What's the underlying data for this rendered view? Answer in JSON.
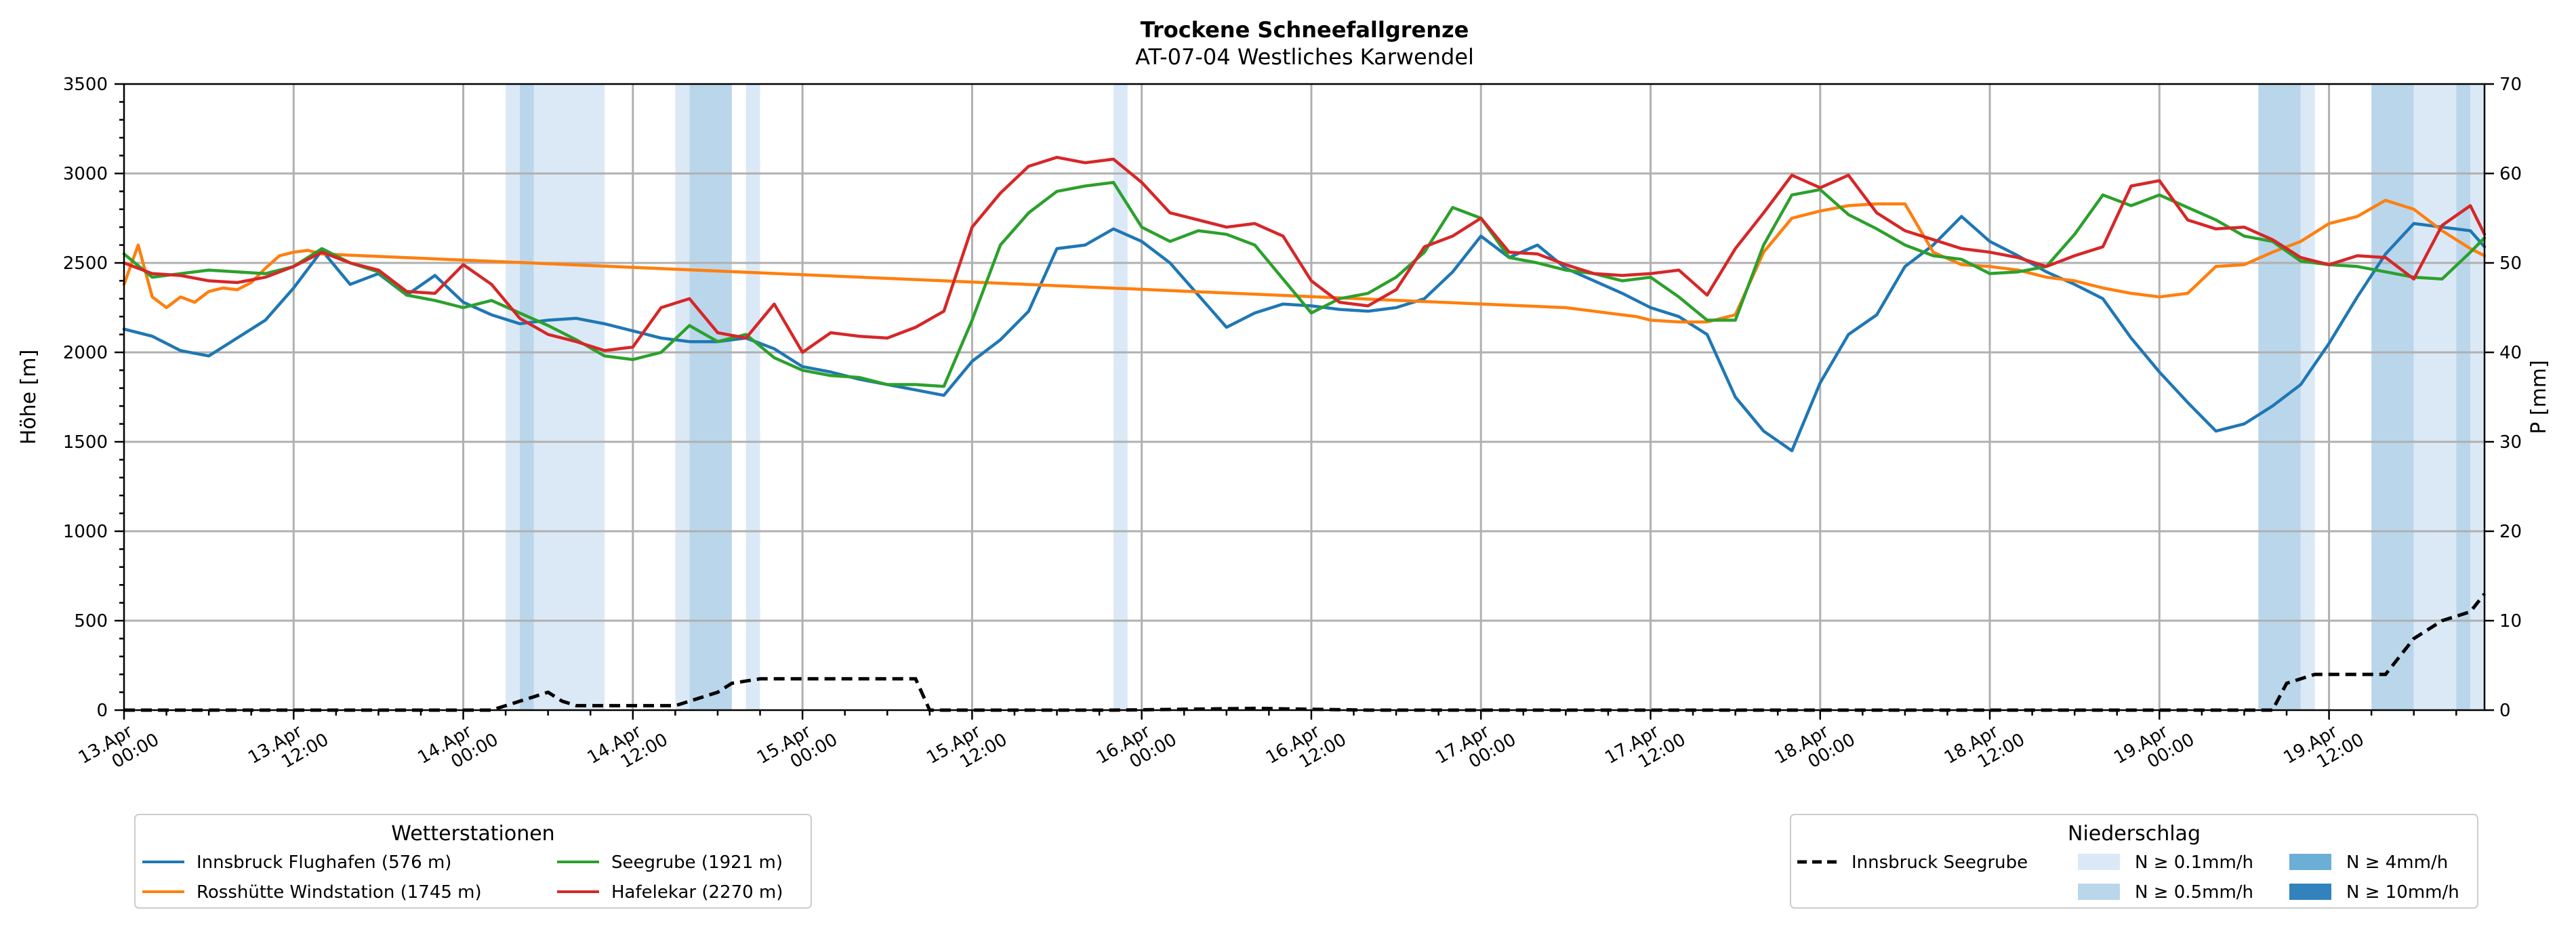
{
  "chart_data": {
    "type": "line",
    "title": "Trockene Schneefallgrenze",
    "subtitle": "AT-07-04 Westliches Karwendel",
    "ylabel": "Höhe [m]",
    "y2label": "P [mm]",
    "ylim": [
      0,
      3500
    ],
    "y2lim": [
      0,
      70
    ],
    "yticks": [
      "0",
      "500",
      "1000",
      "1500",
      "2000",
      "2500",
      "3000",
      "3500"
    ],
    "y2ticks": [
      "0",
      "10",
      "20",
      "30",
      "40",
      "50",
      "60",
      "70"
    ],
    "x_unit": "hours since 13.Apr 00:00",
    "xlim": [
      0,
      167
    ],
    "xticks": [
      {
        "line1": "13.Apr",
        "line2": "00:00"
      },
      {
        "line1": "13.Apr",
        "line2": "12:00"
      },
      {
        "line1": "14.Apr",
        "line2": "00:00"
      },
      {
        "line1": "14.Apr",
        "line2": "12:00"
      },
      {
        "line1": "15.Apr",
        "line2": "00:00"
      },
      {
        "line1": "15.Apr",
        "line2": "12:00"
      },
      {
        "line1": "16.Apr",
        "line2": "00:00"
      },
      {
        "line1": "16.Apr",
        "line2": "12:00"
      },
      {
        "line1": "17.Apr",
        "line2": "00:00"
      },
      {
        "line1": "17.Apr",
        "line2": "12:00"
      },
      {
        "line1": "18.Apr",
        "line2": "00:00"
      },
      {
        "line1": "18.Apr",
        "line2": "12:00"
      },
      {
        "line1": "19.Apr",
        "line2": "00:00"
      },
      {
        "line1": "19.Apr",
        "line2": "12:00"
      }
    ],
    "grid": true,
    "series": [
      {
        "name": "Innsbruck Flughafen (576 m)",
        "color": "#1f77b4",
        "x": [
          0,
          2,
          4,
          6,
          8,
          10,
          12,
          14,
          16,
          18,
          20,
          22,
          24,
          26,
          28,
          30,
          32,
          34,
          36,
          38,
          40,
          42,
          44,
          46,
          48,
          50,
          52,
          54,
          56,
          58,
          60,
          62,
          64,
          66,
          68,
          70,
          72,
          74,
          76,
          78,
          80,
          82,
          84,
          86,
          88,
          90,
          92,
          94,
          96,
          98,
          100,
          102,
          104,
          106,
          108,
          110,
          112,
          114,
          116,
          118,
          120,
          122,
          124,
          126,
          128,
          130,
          132,
          134,
          136,
          138,
          140,
          142,
          144,
          146,
          148,
          150,
          152,
          154,
          156,
          158,
          160,
          162,
          164,
          166,
          167
        ],
        "y": [
          2130,
          2090,
          2010,
          1980,
          2080,
          2180,
          2360,
          2570,
          2380,
          2440,
          2320,
          2430,
          2280,
          2210,
          2160,
          2180,
          2190,
          2160,
          2120,
          2080,
          2060,
          2060,
          2080,
          2020,
          1920,
          1890,
          1850,
          1820,
          1790,
          1760,
          1950,
          2070,
          2230,
          2580,
          2600,
          2690,
          2620,
          2500,
          2320,
          2140,
          2220,
          2270,
          2260,
          2240,
          2230,
          2250,
          2300,
          2450,
          2650,
          2530,
          2600,
          2470,
          2400,
          2330,
          2250,
          2200,
          2100,
          1750,
          1560,
          1450,
          1830,
          2100,
          2210,
          2480,
          2600,
          2760,
          2620,
          2540,
          2450,
          2380,
          2300,
          2080,
          1890,
          1720,
          1560,
          1600,
          1700,
          1820,
          2050,
          2310,
          2550,
          2720,
          2700,
          2680,
          2590
        ]
      },
      {
        "name": "Rosshütte Windstation (1745 m)",
        "color": "#ff7f0e",
        "x": [
          0,
          1,
          2,
          3,
          4,
          5,
          6,
          7,
          8,
          9,
          10,
          11,
          12,
          13,
          14,
          102,
          104,
          106,
          107,
          108,
          110,
          112,
          114,
          116,
          118,
          120,
          122,
          124,
          126,
          128,
          130,
          132,
          134,
          136,
          138,
          140,
          142,
          144,
          146,
          148,
          150,
          152,
          154,
          156,
          158,
          160,
          162,
          164,
          166,
          167
        ],
        "y": [
          2380,
          2600,
          2310,
          2250,
          2310,
          2280,
          2340,
          2360,
          2350,
          2390,
          2470,
          2540,
          2560,
          2570,
          2550,
          2250,
          2230,
          2210,
          2200,
          2180,
          2170,
          2170,
          2210,
          2560,
          2750,
          2790,
          2820,
          2830,
          2830,
          2560,
          2490,
          2480,
          2460,
          2420,
          2400,
          2360,
          2330,
          2310,
          2330,
          2480,
          2490,
          2560,
          2620,
          2720,
          2760,
          2850,
          2800,
          2680,
          2580,
          2540
        ]
      },
      {
        "name": "Seegrube (1921 m)",
        "color": "#2ca02c",
        "x": [
          0,
          2,
          4,
          6,
          8,
          10,
          12,
          14,
          16,
          18,
          20,
          22,
          24,
          26,
          28,
          30,
          32,
          34,
          36,
          38,
          40,
          42,
          44,
          46,
          48,
          50,
          52,
          54,
          56,
          58,
          60,
          62,
          64,
          66,
          68,
          70,
          72,
          74,
          76,
          78,
          80,
          82,
          84,
          86,
          88,
          90,
          92,
          94,
          96,
          98,
          100,
          102,
          104,
          106,
          108,
          110,
          112,
          114,
          116,
          118,
          120,
          122,
          124,
          126,
          128,
          130,
          132,
          134,
          136,
          138,
          140,
          142,
          144,
          146,
          148,
          150,
          152,
          154,
          156,
          158,
          160,
          162,
          164,
          166,
          167
        ],
        "y": [
          2550,
          2420,
          2440,
          2460,
          2450,
          2440,
          2480,
          2580,
          2500,
          2450,
          2320,
          2290,
          2250,
          2290,
          2220,
          2150,
          2070,
          1980,
          1960,
          2000,
          2150,
          2060,
          2100,
          1970,
          1900,
          1870,
          1860,
          1820,
          1820,
          1810,
          2180,
          2600,
          2780,
          2900,
          2930,
          2950,
          2700,
          2620,
          2680,
          2660,
          2600,
          2410,
          2220,
          2300,
          2330,
          2420,
          2560,
          2810,
          2750,
          2530,
          2500,
          2460,
          2440,
          2400,
          2420,
          2310,
          2180,
          2180,
          2600,
          2880,
          2910,
          2770,
          2690,
          2600,
          2540,
          2520,
          2440,
          2450,
          2480,
          2660,
          2880,
          2820,
          2880,
          2810,
          2740,
          2650,
          2620,
          2510,
          2490,
          2480,
          2450,
          2420,
          2410,
          2560,
          2640
        ]
      },
      {
        "name": "Hafelekar (2270 m)",
        "color": "#d62728",
        "x": [
          0,
          2,
          4,
          6,
          8,
          10,
          12,
          14,
          16,
          18,
          20,
          22,
          24,
          26,
          28,
          30,
          32,
          34,
          36,
          38,
          40,
          42,
          44,
          46,
          48,
          50,
          52,
          54,
          56,
          58,
          60,
          62,
          64,
          66,
          68,
          70,
          72,
          74,
          76,
          78,
          80,
          82,
          84,
          86,
          88,
          90,
          92,
          94,
          96,
          98,
          100,
          102,
          104,
          106,
          108,
          110,
          112,
          114,
          116,
          118,
          120,
          122,
          124,
          126,
          128,
          130,
          132,
          134,
          136,
          138,
          140,
          142,
          144,
          146,
          148,
          150,
          152,
          154,
          156,
          158,
          160,
          162,
          164,
          166,
          167
        ],
        "y": [
          2500,
          2440,
          2430,
          2400,
          2390,
          2420,
          2480,
          2560,
          2500,
          2460,
          2340,
          2330,
          2490,
          2380,
          2190,
          2100,
          2060,
          2010,
          2030,
          2250,
          2300,
          2110,
          2080,
          2270,
          2000,
          2110,
          2090,
          2080,
          2140,
          2230,
          2700,
          2890,
          3040,
          3090,
          3060,
          3080,
          2950,
          2780,
          2740,
          2700,
          2720,
          2650,
          2400,
          2280,
          2260,
          2350,
          2590,
          2650,
          2750,
          2560,
          2550,
          2490,
          2440,
          2430,
          2440,
          2460,
          2320,
          2580,
          2780,
          2990,
          2920,
          2990,
          2780,
          2680,
          2630,
          2580,
          2560,
          2530,
          2480,
          2540,
          2590,
          2930,
          2960,
          2740,
          2690,
          2700,
          2630,
          2530,
          2490,
          2540,
          2530,
          2410,
          2710,
          2820,
          2660
        ]
      }
    ],
    "precip_series": {
      "name": "Innsbruck Seegrube",
      "color": "#000000",
      "x": [
        0,
        26,
        28,
        29,
        30,
        31,
        32,
        32.5,
        33,
        35,
        38,
        39,
        40,
        42,
        43,
        45,
        48,
        56,
        57,
        70,
        80,
        88,
        139,
        140,
        141,
        142,
        145,
        147,
        148,
        149,
        150,
        151,
        152,
        153,
        155,
        156,
        157,
        158,
        160,
        162,
        164,
        166,
        167
      ],
      "y": [
        0,
        0,
        1,
        1.5,
        2,
        1,
        0.5,
        0.5,
        0.5,
        0.5,
        0.5,
        0.5,
        1,
        2,
        3,
        3.5,
        3.5,
        3.5,
        0,
        0,
        0.2,
        0,
        0,
        0,
        0,
        0,
        0,
        0,
        0,
        0,
        0,
        0,
        0,
        3,
        4,
        4,
        4,
        4,
        4,
        8,
        10,
        11,
        13
      ]
    },
    "precip_bands": [
      {
        "x0": 27,
        "x1": 28,
        "level": "N ≥ 0.1mm/h"
      },
      {
        "x0": 28,
        "x1": 29,
        "level": "N ≥ 0.5mm/h"
      },
      {
        "x0": 29,
        "x1": 34,
        "level": "N ≥ 0.1mm/h"
      },
      {
        "x0": 39,
        "x1": 40,
        "level": "N ≥ 0.1mm/h"
      },
      {
        "x0": 40,
        "x1": 43,
        "level": "N ≥ 0.5mm/h"
      },
      {
        "x0": 44,
        "x1": 45,
        "level": "N ≥ 0.1mm/h"
      },
      {
        "x0": 70,
        "x1": 71,
        "level": "N ≥ 0.1mm/h"
      },
      {
        "x0": 151,
        "x1": 154,
        "level": "N ≥ 0.5mm/h"
      },
      {
        "x0": 154,
        "x1": 155,
        "level": "N ≥ 0.1mm/h"
      },
      {
        "x0": 159,
        "x1": 162,
        "level": "N ≥ 0.5mm/h"
      },
      {
        "x0": 162,
        "x1": 165,
        "level": "N ≥ 0.1mm/h"
      },
      {
        "x0": 165,
        "x1": 166,
        "level": "N ≥ 0.5mm/h"
      },
      {
        "x0": 166,
        "x1": 167,
        "level": "N ≥ 0.1mm/h"
      }
    ],
    "legend_stations": {
      "title": "Wetterstationen",
      "position": "bottom-left",
      "entries": [
        "Innsbruck Flughafen (576 m)",
        "Rosshütte Windstation (1745 m)",
        "Seegrube (1921 m)",
        "Hafelekar (2270 m)"
      ]
    },
    "legend_precip": {
      "title": "Niederschlag",
      "position": "bottom-right",
      "line_entry": "Innsbruck Seegrube",
      "levels": [
        {
          "label": "N ≥ 0.1mm/h",
          "color": "#dbe9f6"
        },
        {
          "label": "N ≥ 0.5mm/h",
          "color": "#bad6eb"
        },
        {
          "label": "N ≥ 4mm/h",
          "color": "#6baed6"
        },
        {
          "label": "N ≥ 10mm/h",
          "color": "#3182bd"
        }
      ]
    }
  }
}
